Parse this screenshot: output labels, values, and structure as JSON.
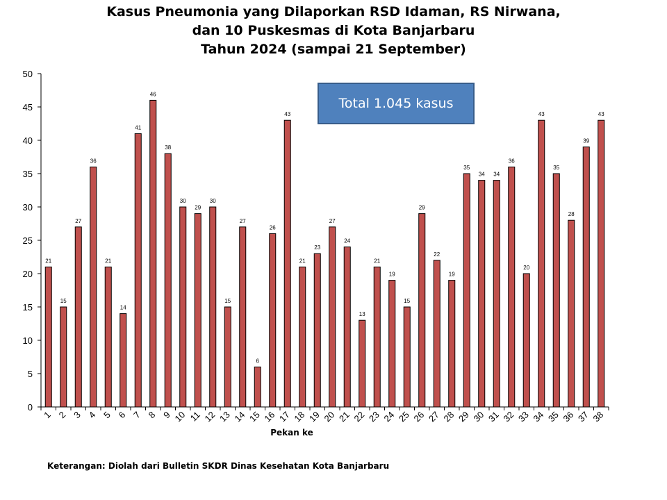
{
  "chart_data": {
    "type": "bar",
    "title_lines": [
      "Kasus Pneumonia yang Dilaporkan RSD Idaman, RS Nirwana,",
      "dan 10 Puskesmas di Kota Banjarbaru",
      "Tahun 2024 (sampai 21 September)"
    ],
    "xlabel": "Pekan ke",
    "ylabel": "",
    "ylim": [
      0,
      50
    ],
    "yticks": [
      0,
      5,
      10,
      15,
      20,
      25,
      30,
      35,
      40,
      45,
      50
    ],
    "categories": [
      "1",
      "2",
      "3",
      "4",
      "5",
      "6",
      "7",
      "8",
      "9",
      "10",
      "11",
      "12",
      "13",
      "14",
      "15",
      "16",
      "17",
      "18",
      "19",
      "20",
      "21",
      "22",
      "23",
      "24",
      "25",
      "26",
      "27",
      "28",
      "29",
      "30",
      "31",
      "32",
      "33",
      "34",
      "35",
      "36",
      "37",
      "38"
    ],
    "values": [
      21,
      15,
      27,
      36,
      21,
      14,
      41,
      46,
      38,
      30,
      29,
      30,
      15,
      27,
      6,
      26,
      43,
      21,
      23,
      27,
      24,
      13,
      21,
      19,
      15,
      29,
      22,
      19,
      35,
      34,
      34,
      36,
      20,
      43,
      35,
      28,
      39,
      43
    ],
    "bar_color": "#c0504d",
    "bar_stroke": "#000000",
    "grid": false,
    "legend": "none",
    "annotation": "Total 1.045 kasus"
  },
  "footer_note": "Keterangan: Diolah dari Bulletin SKDR Dinas Kesehatan Kota Banjarbaru"
}
